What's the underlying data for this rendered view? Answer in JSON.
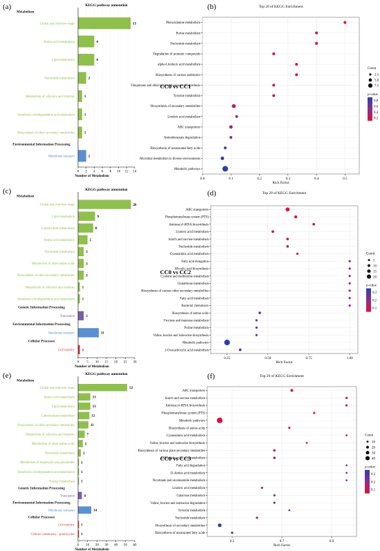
{
  "colors": {
    "metabolism": "#8fbf4d",
    "genetic": "#7b5fa8",
    "environmental": "#5b8fd1",
    "cellular": "#d8403f",
    "header": "#111111",
    "grid": "#e4e4e4",
    "dot_low": "#2c3fa8",
    "dot_mid": "#8c2e8e",
    "dot_high": "#e0103a"
  },
  "chart_data": [
    {
      "type": "bar",
      "panel": "(a)",
      "title": "KEGG pathway annotation",
      "xlabel": "Number of Metabolism",
      "xlim": [
        0,
        14
      ],
      "xticks": [
        0,
        2,
        4,
        6,
        8,
        10,
        12,
        14
      ],
      "groups": [
        {
          "name": "Metabolism",
          "class": "metabolism",
          "items": [
            {
              "label": "Global and overview maps",
              "value": 13
            },
            {
              "label": "Amino acid metabolism",
              "value": 4
            },
            {
              "label": "Lipid metabolism",
              "value": 4
            },
            {
              "label": "Nucleotide metabolism",
              "value": 2
            },
            {
              "label": "Metabolism of cofactors and vitamins",
              "value": 1
            },
            {
              "label": "Xenobiotics biodegradation and metabolism",
              "value": 1
            },
            {
              "label": "Biosynthesis of other secondary metabolites",
              "value": 1
            }
          ]
        },
        {
          "name": "Environmental Information Processing",
          "class": "environmental",
          "items": [
            {
              "label": "Membrane transport",
              "value": 2
            }
          ]
        }
      ]
    },
    {
      "type": "scatter",
      "panel": "(b)",
      "title": "Top 20 of KEGG Enrichment",
      "xlabel": "Rich Factor",
      "comparison": "CC0 vs CC1",
      "xlim": [
        0,
        0.55
      ],
      "xticks": [
        "0.0",
        "0.1",
        "0.2",
        "0.3",
        "0.4",
        "0.5"
      ],
      "legend_count_title": "Count",
      "legend_count_values": [
        "2.5",
        "5.0",
        "7.5"
      ],
      "legend_p_title": "p-value",
      "legend_p_ticks": [
        "0.8",
        "0.6",
        "0.4",
        "0.2"
      ],
      "points": [
        {
          "label": "Phenylalanine metabolism",
          "x": 0.5,
          "count": 1,
          "p": 0.15
        },
        {
          "label": "Purine metabolism",
          "x": 0.4,
          "count": 1,
          "p": 0.15
        },
        {
          "label": "Nucleotide metabolism",
          "x": 0.4,
          "count": 1,
          "p": 0.15
        },
        {
          "label": "Degradation of aromatic compounds",
          "x": 0.25,
          "count": 1,
          "p": 0.2
        },
        {
          "label": "alpha-Linolenic acid metabolism",
          "x": 0.33,
          "count": 1,
          "p": 0.2
        },
        {
          "label": "Biosynthesis of various antibiotics",
          "x": 0.33,
          "count": 1,
          "p": 0.2
        },
        {
          "label": "Ubiquinone and other terpenoid-quinone biosynthesis",
          "x": 0.25,
          "count": 1,
          "p": 0.3
        },
        {
          "label": "Tyrosine metabolism",
          "x": 0.25,
          "count": 1,
          "p": 0.3
        },
        {
          "label": "Biosynthesis of secondary metabolites",
          "x": 0.11,
          "count": 3,
          "p": 0.35
        },
        {
          "label": "Linoleic acid metabolism",
          "x": 0.12,
          "count": 1,
          "p": 0.45
        },
        {
          "label": "ABC transporters",
          "x": 0.1,
          "count": 2,
          "p": 0.5
        },
        {
          "label": "Aminobenzoate degradation",
          "x": 0.1,
          "count": 1,
          "p": 0.55
        },
        {
          "label": "Biosynthesis of unsaturated fatty acids",
          "x": 0.08,
          "count": 1,
          "p": 0.65
        },
        {
          "label": "Microbial metabolism in diverse environments",
          "x": 0.07,
          "count": 2,
          "p": 0.75
        },
        {
          "label": "Metabolic pathways",
          "x": 0.08,
          "count": 8,
          "p": 0.8
        }
      ]
    },
    {
      "type": "bar",
      "panel": "(c)",
      "title": "KEGG pathway annotation",
      "xlabel": "Number of Metabolism",
      "xlim": [
        0,
        30
      ],
      "xticks": [
        0,
        5,
        10,
        15,
        20,
        25,
        30
      ],
      "groups": [
        {
          "name": "Metabolism",
          "class": "metabolism",
          "items": [
            {
              "label": "Global and overview maps",
              "value": 28
            },
            {
              "label": "Lipid metabolism",
              "value": 9
            },
            {
              "label": "Carbohydrate metabolism",
              "value": 8
            },
            {
              "label": "Amino acid metabolism",
              "value": 5
            },
            {
              "label": "Nucleotide metabolism",
              "value": 3
            },
            {
              "label": "Metabolism of other amino acids",
              "value": 3
            },
            {
              "label": "Biosynthesis of other secondary metabolites",
              "value": 3
            },
            {
              "label": "Metabolism of cofactors and vitamins",
              "value": 1
            },
            {
              "label": "Xenobiotics biodegradation and metabolism",
              "value": 1
            }
          ]
        },
        {
          "name": "Genetic Information Processing",
          "class": "genetic",
          "items": [
            {
              "label": "Translation",
              "value": 3
            }
          ]
        },
        {
          "name": "Environmental Information Processing",
          "class": "environmental",
          "items": [
            {
              "label": "Membrane transport",
              "value": 11
            }
          ]
        },
        {
          "name": "Cellular Processes",
          "class": "cellular",
          "items": [
            {
              "label": "Cell motility",
              "value": 1
            }
          ]
        }
      ]
    },
    {
      "type": "scatter",
      "panel": "(d)",
      "title": "Top 20 of KEGG Enrichment",
      "xlabel": "Rich Factor",
      "comparison": "CC0 vs CC2",
      "xlim": [
        0.15,
        1.05
      ],
      "xticks": [
        "0.25",
        "0.50",
        "0.75",
        "1.00"
      ],
      "legend_count_title": "Count",
      "legend_count_values": [
        "5",
        "10",
        "15",
        "20"
      ],
      "legend_p_title": "p-value",
      "legend_p_ticks": [
        "0.3",
        "0.2",
        "0.1"
      ],
      "points": [
        {
          "label": "ABC transporters",
          "x": 0.62,
          "count": 8,
          "p": 0.02
        },
        {
          "label": "Phosphotransferase system (PTS)",
          "x": 0.67,
          "count": 3,
          "p": 0.04
        },
        {
          "label": "Aminoacyl-tRNA biosynthesis",
          "x": 0.78,
          "count": 2,
          "p": 0.05
        },
        {
          "label": "Linoleic acid metabolism",
          "x": 0.53,
          "count": 2,
          "p": 0.06
        },
        {
          "label": "Starch and sucrose metabolism",
          "x": 0.62,
          "count": 2,
          "p": 0.08
        },
        {
          "label": "Nucleotide metabolism",
          "x": 0.62,
          "count": 2,
          "p": 0.09
        },
        {
          "label": "Cyanoamino acid metabolism",
          "x": 0.68,
          "count": 1,
          "p": 0.1
        },
        {
          "label": "Fatty acid elongation",
          "x": 1.0,
          "count": 1,
          "p": 0.12
        },
        {
          "label": "Mycolic acid biosynthesis",
          "x": 1.0,
          "count": 1,
          "p": 0.12
        },
        {
          "label": "Cysteine and methionine metabolism",
          "x": 1.0,
          "count": 1,
          "p": 0.13
        },
        {
          "label": "Glutathione metabolism",
          "x": 1.0,
          "count": 1,
          "p": 0.13
        },
        {
          "label": "Biosynthesis of various other secondary metabolites",
          "x": 1.0,
          "count": 1,
          "p": 0.14
        },
        {
          "label": "Fatty acid metabolism",
          "x": 1.0,
          "count": 1,
          "p": 0.14
        },
        {
          "label": "Bacterial chemotaxis",
          "x": 1.0,
          "count": 1,
          "p": 0.15
        },
        {
          "label": "Biosynthesis of amino acids",
          "x": 0.45,
          "count": 2,
          "p": 0.2
        },
        {
          "label": "Fructose and mannose metabolism",
          "x": 0.43,
          "count": 1,
          "p": 0.22
        },
        {
          "label": "Purine metabolism",
          "x": 0.43,
          "count": 1,
          "p": 0.23
        },
        {
          "label": "Valine, leucine and isoleucine biosynthesis",
          "x": 0.43,
          "count": 1,
          "p": 0.24
        },
        {
          "label": "Metabolic pathways",
          "x": 0.25,
          "count": 20,
          "p": 0.3
        },
        {
          "label": "2-Oxocarboxylic acid metabolism",
          "x": 0.33,
          "count": 2,
          "p": 0.3
        }
      ]
    },
    {
      "type": "bar",
      "panel": "(e)",
      "title": "KEGG pathway annotation",
      "xlabel": "Number of Metabolism",
      "xlim": [
        0,
        60
      ],
      "xticks": [
        0,
        10,
        20,
        30,
        40,
        50,
        60
      ],
      "groups": [
        {
          "name": "Metabolism",
          "class": "metabolism",
          "items": [
            {
              "label": "Global and overview maps",
              "value": 52
            },
            {
              "label": "Amino acid metabolism",
              "value": 13
            },
            {
              "label": "Lipid metabolism",
              "value": 13
            },
            {
              "label": "Carbohydrate metabolism",
              "value": 12
            },
            {
              "label": "Biosynthesis of other secondary metabolites",
              "value": 11
            },
            {
              "label": "Metabolism of cofactors and vitamins",
              "value": 7
            },
            {
              "label": "Metabolism of other amino acids",
              "value": 5
            },
            {
              "label": "Nucleotide metabolism",
              "value": 3
            },
            {
              "label": "Metabolism of terpenoids and polyketides",
              "value": 1
            },
            {
              "label": "Xenobiotics biodegradation and metabolism",
              "value": 1
            },
            {
              "label": "Energy metabolism",
              "value": 1
            }
          ]
        },
        {
          "name": "Genetic Information Processing",
          "class": "genetic",
          "items": [
            {
              "label": "Translation",
              "value": 4
            }
          ]
        },
        {
          "name": "Environmental Information Processing",
          "class": "environmental",
          "items": [
            {
              "label": "Membrane transport",
              "value": 14
            }
          ]
        },
        {
          "name": "Cellular Processes",
          "class": "cellular",
          "items": [
            {
              "label": "Cell motility",
              "value": 1
            },
            {
              "label": "Cellular community - prokaryotes",
              "value": 1
            }
          ]
        }
      ]
    },
    {
      "type": "scatter",
      "panel": "(f)",
      "title": "Top 20 of KEGG Enrichment",
      "xlabel": "Rich Factor",
      "comparison": "CC0 vs CC3",
      "xlim": [
        0.4,
        1.0
      ],
      "xticks": [
        "0.5",
        "0.7",
        "0.9"
      ],
      "legend_count_title": "Count",
      "legend_count_values": [
        "10",
        "20",
        "30",
        "40"
      ],
      "legend_p_title": "p-value",
      "legend_p_ticks": [
        "0.3",
        "0.2",
        "0.1"
      ],
      "points": [
        {
          "label": "ABC transporters",
          "x": 0.74,
          "count": 5,
          "p": 0.02
        },
        {
          "label": "Starch and sucrose metabolism",
          "x": 0.96,
          "count": 2,
          "p": 0.03
        },
        {
          "label": "Aminoacyl-tRNA biosynthesis",
          "x": 0.96,
          "count": 2,
          "p": 0.03
        },
        {
          "label": "Phosphotransferase system (PTS)",
          "x": 0.83,
          "count": 2,
          "p": 0.04
        },
        {
          "label": "Metabolic pathways",
          "x": 0.45,
          "count": 40,
          "p": 0.04
        },
        {
          "label": "Biosynthesis of amino acids",
          "x": 0.73,
          "count": 2,
          "p": 0.05
        },
        {
          "label": "Cyanoamino acid metabolism",
          "x": 0.96,
          "count": 1,
          "p": 0.06
        },
        {
          "label": "Valine, leucine and isoleucine biosynthesis",
          "x": 0.8,
          "count": 1,
          "p": 0.07
        },
        {
          "label": "Biosynthesis of various plant secondary metabolites",
          "x": 0.67,
          "count": 3,
          "p": 0.08
        },
        {
          "label": "2-Oxocarboxylic acid metabolism",
          "x": 0.67,
          "count": 3,
          "p": 0.09
        },
        {
          "label": "Fatty acid degradation",
          "x": 0.96,
          "count": 1,
          "p": 0.15
        },
        {
          "label": "D-Amino acid metabolism",
          "x": 0.96,
          "count": 1,
          "p": 0.16
        },
        {
          "label": "Nicotinate and nicotinamide metabolism",
          "x": 0.96,
          "count": 1,
          "p": 0.17
        },
        {
          "label": "Linoleic acid metabolism",
          "x": 0.62,
          "count": 2,
          "p": 0.18
        },
        {
          "label": "Galactose metabolism",
          "x": 0.67,
          "count": 2,
          "p": 0.19
        },
        {
          "label": "Valine, leucine and isoleucine degradation",
          "x": 0.67,
          "count": 2,
          "p": 0.2
        },
        {
          "label": "Tyrosine metabolism",
          "x": 0.73,
          "count": 1,
          "p": 0.22
        },
        {
          "label": "Nucleotide metabolism",
          "x": 0.6,
          "count": 2,
          "p": 0.24
        },
        {
          "label": "Biosynthesis of secondary metabolites",
          "x": 0.45,
          "count": 12,
          "p": 0.33
        },
        {
          "label": "Biosynthesis of unsaturated fatty acids",
          "x": 0.5,
          "count": 2,
          "p": 0.33
        }
      ]
    }
  ]
}
